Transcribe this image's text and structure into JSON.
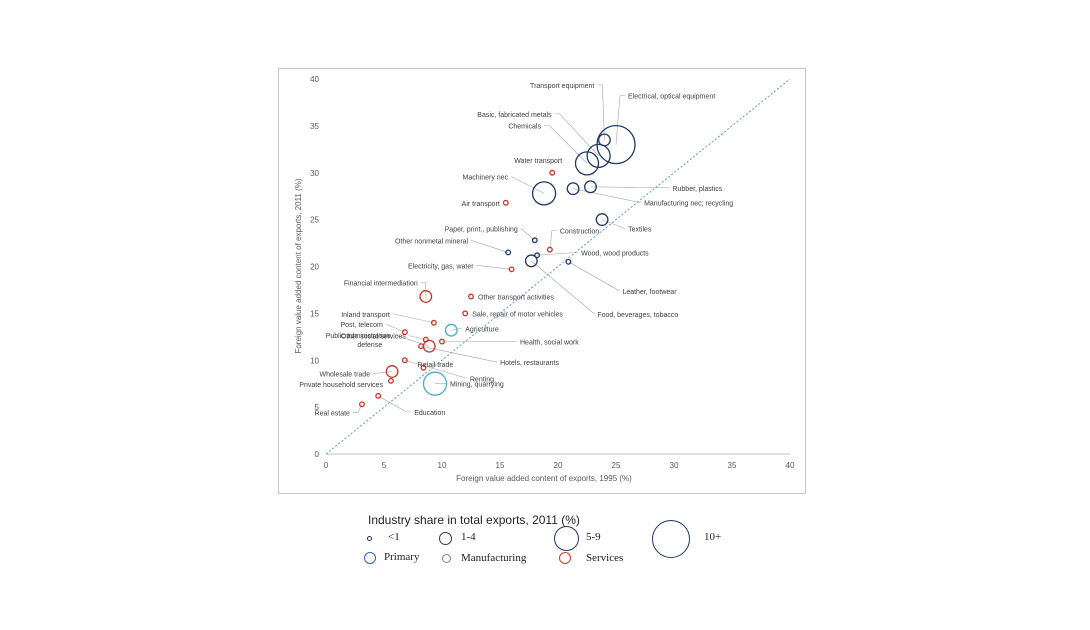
{
  "chart_data": {
    "type": "scatter",
    "xlabel": "Foreign value added content of exports, 1995 (%)",
    "ylabel": "Foreign value added content of exports, 2011 (%)",
    "xlim": [
      0,
      40
    ],
    "ylim": [
      0,
      40
    ],
    "xticks": [
      "0",
      "5",
      "10",
      "15",
      "20",
      "25",
      "30",
      "35",
      "40"
    ],
    "yticks": [
      "0",
      "5",
      "10",
      "15",
      "20",
      "25",
      "30",
      "35",
      "40"
    ],
    "grid": false,
    "diagonal": true,
    "colors": {
      "Primary": "#4bacc6",
      "Manufacturing": "#1f3864",
      "Services": "#c0392b",
      "diagonal": "#5b9bd5"
    },
    "points": [
      {
        "name": "Electrical, optical equipment",
        "x": 25.0,
        "y": 33.0,
        "size": "10+",
        "group": "Manufacturing"
      },
      {
        "name": "Transport equipment",
        "x": 24.0,
        "y": 33.5,
        "size": "1-4",
        "group": "Manufacturing"
      },
      {
        "name": "Basic, fabricated metals",
        "x": 23.5,
        "y": 31.8,
        "size": "5-9",
        "group": "Manufacturing"
      },
      {
        "name": "Chemicals",
        "x": 22.5,
        "y": 31.0,
        "size": "5-9",
        "group": "Manufacturing"
      },
      {
        "name": "Water transport",
        "x": 19.5,
        "y": 30.0,
        "size": "<1",
        "group": "Services"
      },
      {
        "name": "Machinery nec",
        "x": 18.8,
        "y": 27.8,
        "size": "5-9",
        "group": "Manufacturing"
      },
      {
        "name": "Rubber, plastics",
        "x": 22.8,
        "y": 28.5,
        "size": "1-4",
        "group": "Manufacturing"
      },
      {
        "name": "Manufacturing nec; recycling",
        "x": 21.3,
        "y": 28.3,
        "size": "1-4",
        "group": "Manufacturing"
      },
      {
        "name": "Air transport",
        "x": 15.5,
        "y": 26.8,
        "size": "<1",
        "group": "Services"
      },
      {
        "name": "Textiles",
        "x": 23.8,
        "y": 25.0,
        "size": "1-4",
        "group": "Manufacturing"
      },
      {
        "name": "Paper, print., publishing",
        "x": 18.0,
        "y": 22.8,
        "size": "<1",
        "group": "Manufacturing"
      },
      {
        "name": "Other nonmetal mineral",
        "x": 15.7,
        "y": 21.5,
        "size": "<1",
        "group": "Manufacturing"
      },
      {
        "name": "Construction",
        "x": 19.3,
        "y": 21.8,
        "size": "<1",
        "group": "Services"
      },
      {
        "name": "Wood, wood products",
        "x": 18.2,
        "y": 21.2,
        "size": "<1",
        "group": "Manufacturing"
      },
      {
        "name": "Food, beverages, tobacco",
        "x": 17.7,
        "y": 20.6,
        "size": "1-4",
        "group": "Manufacturing"
      },
      {
        "name": "Leather, footwear",
        "x": 20.9,
        "y": 20.5,
        "size": "<1",
        "group": "Manufacturing"
      },
      {
        "name": "Electricity, gas, water",
        "x": 16.0,
        "y": 19.7,
        "size": "<1",
        "group": "Services"
      },
      {
        "name": "Financial intermediation",
        "x": 8.6,
        "y": 16.8,
        "size": "1-4",
        "group": "Services"
      },
      {
        "name": "Other transport activities",
        "x": 12.5,
        "y": 16.8,
        "size": "<1",
        "group": "Services"
      },
      {
        "name": "Sale, repair of motor vehicles",
        "x": 12.0,
        "y": 15.0,
        "size": "<1",
        "group": "Services"
      },
      {
        "name": "Inland transport",
        "x": 9.3,
        "y": 14.0,
        "size": "<1",
        "group": "Services"
      },
      {
        "name": "Agriculture",
        "x": 10.8,
        "y": 13.2,
        "size": "1-4",
        "group": "Primary"
      },
      {
        "name": "Post, telecom",
        "x": 6.8,
        "y": 13.0,
        "size": "<1",
        "group": "Services"
      },
      {
        "name": "Health, social work",
        "x": 10.0,
        "y": 12.0,
        "size": "<1",
        "group": "Services"
      },
      {
        "name": "Other social services",
        "x": 8.6,
        "y": 12.2,
        "size": "<1",
        "group": "Services"
      },
      {
        "name": "Hotels, restaurants",
        "x": 8.2,
        "y": 11.5,
        "size": "<1",
        "group": "Services"
      },
      {
        "name": "Public administration, defense",
        "x": 8.9,
        "y": 11.5,
        "size": "1-4",
        "group": "Services"
      },
      {
        "name": "Renting",
        "x": 6.8,
        "y": 10.0,
        "size": "<1",
        "group": "Services"
      },
      {
        "name": "Retail trade",
        "x": 8.4,
        "y": 9.2,
        "size": "<1",
        "group": "Services"
      },
      {
        "name": "Wholesale trade",
        "x": 5.7,
        "y": 8.8,
        "size": "1-4",
        "group": "Services"
      },
      {
        "name": "Private household services",
        "x": 5.6,
        "y": 7.8,
        "size": "<1",
        "group": "Services"
      },
      {
        "name": "Mining, quarrying",
        "x": 9.4,
        "y": 7.5,
        "size": "5-9",
        "group": "Primary"
      },
      {
        "name": "Education",
        "x": 4.5,
        "y": 6.2,
        "size": "<1",
        "group": "Services"
      },
      {
        "name": "Real estate",
        "x": 3.1,
        "y": 5.3,
        "size": "<1",
        "group": "Services"
      }
    ]
  },
  "legend": {
    "title": "Industry share in total exports, 2011 (%)",
    "sizes": [
      "<1",
      "1-4",
      "5-9",
      "10+"
    ],
    "groups": [
      "Primary",
      "Manufacturing",
      "Services"
    ]
  }
}
